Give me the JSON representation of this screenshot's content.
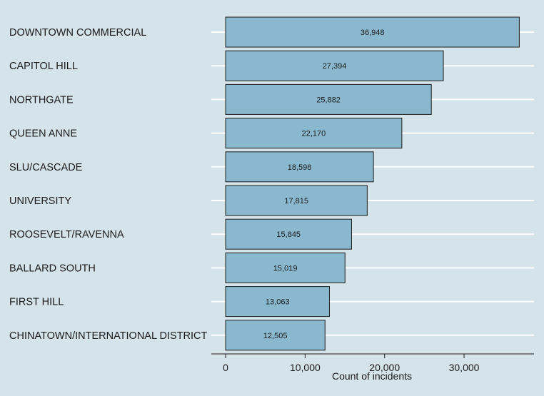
{
  "chart_data": {
    "type": "bar",
    "orientation": "horizontal",
    "categories": [
      "DOWNTOWN COMMERCIAL",
      "CAPITOL HILL",
      "NORTHGATE",
      "QUEEN ANNE",
      "SLU/CASCADE",
      "UNIVERSITY",
      "ROOSEVELT/RAVENNA",
      "BALLARD SOUTH",
      "FIRST HILL",
      "CHINATOWN/INTERNATIONAL DISTRICT"
    ],
    "values": [
      36948,
      27394,
      25882,
      22170,
      18598,
      17815,
      15845,
      15019,
      13063,
      12505
    ],
    "value_labels": [
      "36,948",
      "27,394",
      "25,882",
      "22,170",
      "18,598",
      "17,815",
      "15,845",
      "15,019",
      "13,063",
      "12,505"
    ],
    "title": "",
    "xlabel": "Count of incidents",
    "ylabel": "",
    "xticks": [
      0,
      10000,
      20000,
      30000
    ],
    "xtick_labels": [
      "0",
      "10,000",
      "20,000",
      "30,000"
    ],
    "xlim": [
      -1800,
      38800
    ],
    "grid": true,
    "colors": {
      "background": "#d5e3ea",
      "bar_fill": "#8ab9cf",
      "bar_stroke": "#1a1a1a",
      "grid": "#ffffff",
      "text": "#1a1a1a"
    }
  }
}
